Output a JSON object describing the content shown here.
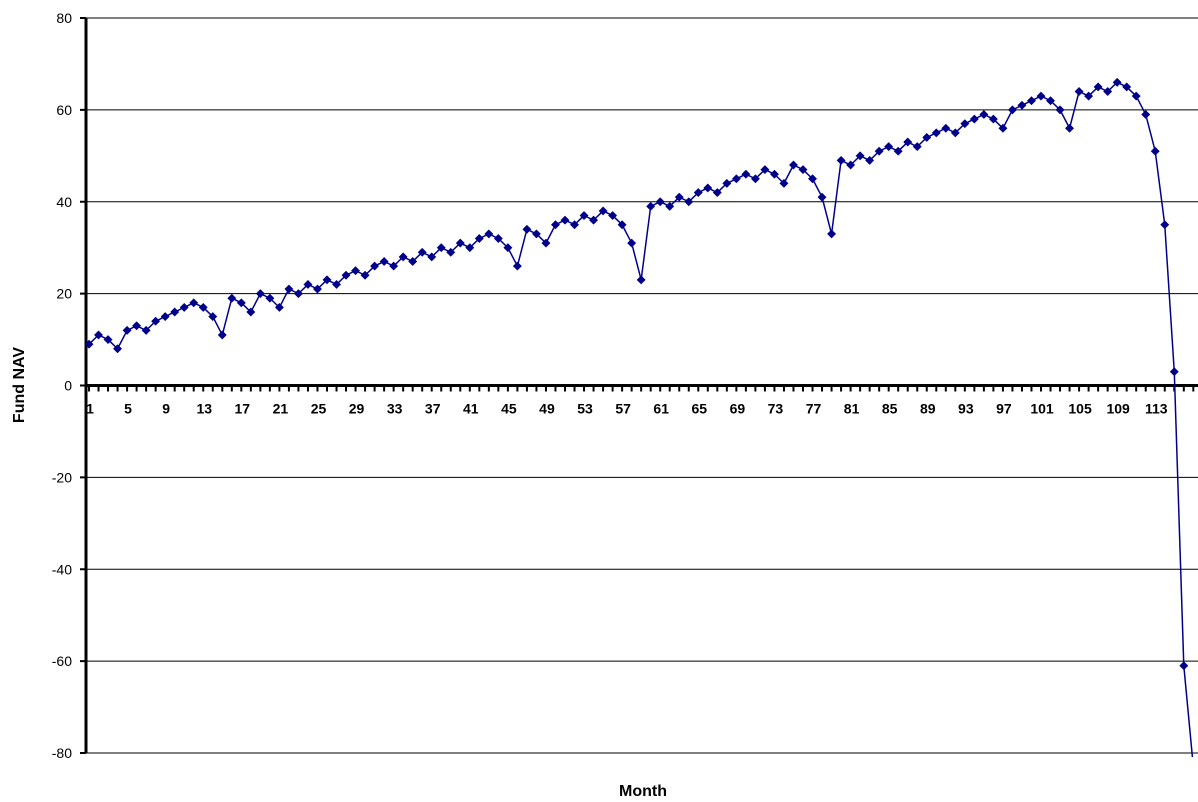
{
  "chart_data": {
    "type": "line",
    "title": "",
    "xlabel": "Month",
    "ylabel": "Fund NAV",
    "ylim": [
      -80,
      80
    ],
    "yticks": [
      -80,
      -60,
      -40,
      -20,
      0,
      20,
      40,
      60,
      80
    ],
    "y_tick_labels": [
      "-80",
      "-60",
      "-40",
      "-20",
      "0",
      "20",
      "40",
      "60",
      "80"
    ],
    "xlim": [
      1,
      117
    ],
    "x_tick_values": [
      1,
      5,
      9,
      13,
      17,
      21,
      25,
      29,
      33,
      37,
      41,
      45,
      49,
      53,
      57,
      61,
      65,
      69,
      73,
      77,
      81,
      85,
      89,
      93,
      97,
      101,
      105,
      109,
      113
    ],
    "x_tick_labels": [
      "1",
      "5",
      "9",
      "13",
      "17",
      "21",
      "25",
      "29",
      "33",
      "37",
      "41",
      "45",
      "49",
      "53",
      "57",
      "61",
      "65",
      "69",
      "73",
      "77",
      "81",
      "85",
      "89",
      "93",
      "97",
      "101",
      "105",
      "109",
      "113"
    ],
    "grid": "horizontal",
    "legend": "none",
    "series_color": "#00008B",
    "x": [
      1,
      2,
      3,
      4,
      5,
      6,
      7,
      8,
      9,
      10,
      11,
      12,
      13,
      14,
      15,
      16,
      17,
      18,
      19,
      20,
      21,
      22,
      23,
      24,
      25,
      26,
      27,
      28,
      29,
      30,
      31,
      32,
      33,
      34,
      35,
      36,
      37,
      38,
      39,
      40,
      41,
      42,
      43,
      44,
      45,
      46,
      47,
      48,
      49,
      50,
      51,
      52,
      53,
      54,
      55,
      56,
      57,
      58,
      59,
      60,
      61,
      62,
      63,
      64,
      65,
      66,
      67,
      68,
      69,
      70,
      71,
      72,
      73,
      74,
      75,
      76,
      77,
      78,
      79,
      80,
      81,
      82,
      83,
      84,
      85,
      86,
      87,
      88,
      89,
      90,
      91,
      92,
      93,
      94,
      95,
      96,
      97,
      98,
      99,
      100,
      101,
      102,
      103,
      104,
      105,
      106,
      107,
      108,
      109,
      110,
      111,
      112,
      113,
      114,
      115,
      116,
      117
    ],
    "series": [
      {
        "values": [
          9,
          11,
          10,
          8,
          12,
          13,
          12,
          14,
          15,
          16,
          17,
          18,
          17,
          15,
          11,
          19,
          18,
          16,
          20,
          19,
          17,
          21,
          20,
          22,
          21,
          23,
          22,
          24,
          25,
          24,
          26,
          27,
          26,
          28,
          27,
          29,
          28,
          30,
          29,
          31,
          30,
          32,
          33,
          32,
          30,
          26,
          34,
          33,
          31,
          35,
          36,
          35,
          37,
          36,
          38,
          37,
          35,
          31,
          23,
          39,
          40,
          39,
          41,
          40,
          42,
          43,
          42,
          44,
          45,
          46,
          45,
          47,
          46,
          44,
          48,
          47,
          45,
          41,
          33,
          49,
          48,
          50,
          49,
          51,
          52,
          51,
          53,
          52,
          54,
          55,
          56,
          55,
          57,
          58,
          59,
          58,
          56,
          60,
          61,
          62,
          63,
          62,
          60,
          56,
          64,
          63,
          65,
          64,
          66,
          65,
          63,
          59,
          51,
          35,
          3,
          -61,
          -83
        ]
      }
    ]
  }
}
